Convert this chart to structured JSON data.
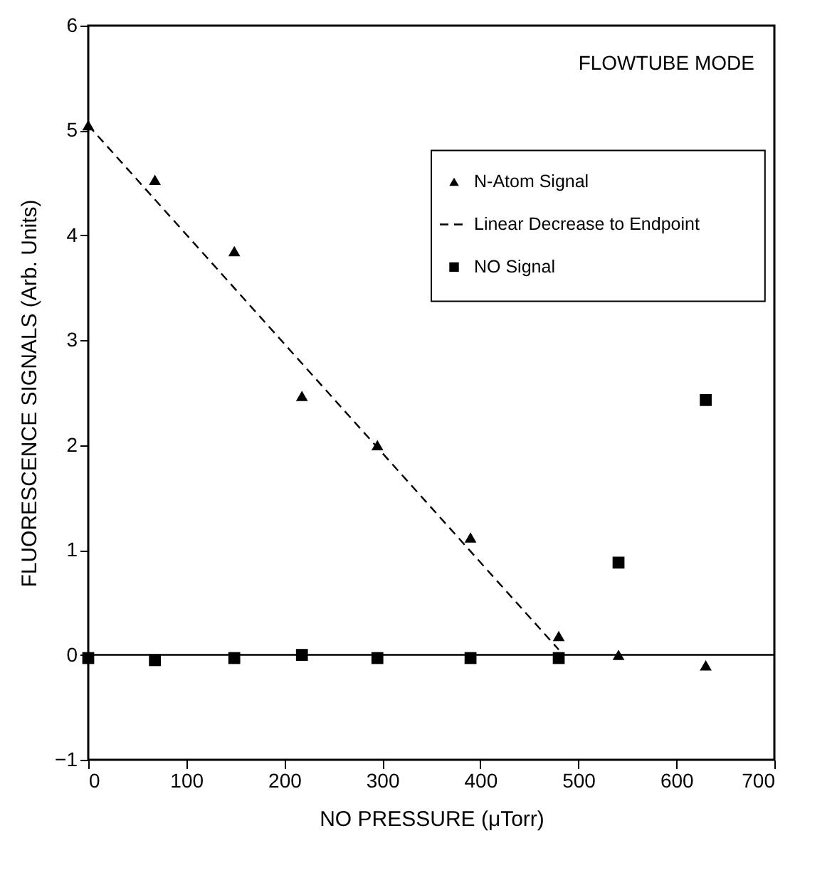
{
  "chart_data": {
    "type": "scatter",
    "xlabel": "NO PRESSURE (μTorr)",
    "ylabel": "FLUORESCENCE SIGNALS (Arb. Units)",
    "annotations": [
      "FLOWTUBE MODE"
    ],
    "xlim": [
      0,
      700
    ],
    "xticks": [
      0,
      100,
      200,
      300,
      400,
      500,
      600,
      700
    ],
    "ylim": [
      -1,
      6
    ],
    "yticks": [
      -1,
      0,
      1,
      2,
      3,
      4,
      5,
      6
    ],
    "grid": false,
    "legend": "top right",
    "ref_lines": [
      {
        "axis": "y",
        "value": 0,
        "color": "#000000",
        "line_style": "solid"
      }
    ],
    "series": [
      {
        "name": "N-Atom Signal",
        "marker": "triangle",
        "color": "#000000",
        "x": [
          0,
          68,
          149,
          218,
          295,
          390,
          480,
          541,
          630
        ],
        "values": [
          5.05,
          4.53,
          3.85,
          2.47,
          2.0,
          1.12,
          0.18,
          0.0,
          -0.1
        ]
      },
      {
        "name": "Linear Decrease to Endpoint",
        "type": "line",
        "line_style": "dashed",
        "color": "#000000",
        "x": [
          0,
          480
        ],
        "values": [
          5.05,
          0.05
        ]
      },
      {
        "name": "NO Signal",
        "marker": "square",
        "color": "#000000",
        "x": [
          0,
          68,
          149,
          218,
          295,
          390,
          480,
          541,
          630
        ],
        "values": [
          -0.03,
          -0.05,
          -0.03,
          0.0,
          -0.03,
          -0.03,
          -0.03,
          0.88,
          2.43
        ]
      }
    ]
  }
}
